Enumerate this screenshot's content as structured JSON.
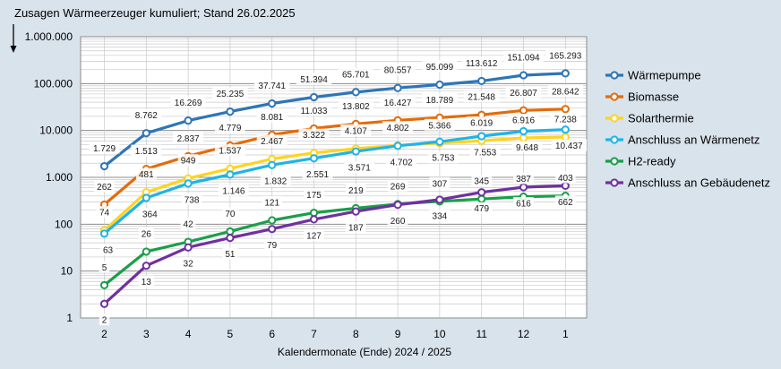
{
  "chart_data": {
    "type": "line",
    "title": "Zusagen Wärmeerzeuger kumuliert; Stand  26.02.2025",
    "xlabel": "Kalendermonate (Ende) 2024 / 2025",
    "ylabel": "",
    "yscale": "log",
    "ylim": [
      1,
      1000000
    ],
    "categories": [
      "2",
      "3",
      "4",
      "5",
      "6",
      "7",
      "8",
      "9",
      "10",
      "11",
      "12",
      "1"
    ],
    "y_tick_labels": [
      "1",
      "10",
      "100",
      "1.000",
      "10.000",
      "100.000",
      "1.000.000"
    ],
    "legend_position": "right",
    "series": [
      {
        "name": "Wärmepumpe",
        "color": "#2e75b6",
        "values": [
          1729,
          8762,
          16269,
          25235,
          37741,
          51394,
          65701,
          80557,
          95099,
          113612,
          151094,
          165293
        ],
        "labels": [
          "1.729",
          "8.762",
          "16.269",
          "25.235",
          "37.741",
          "51.394",
          "65.701",
          "80.557",
          "95.099",
          "113.612",
          "151.094",
          "165.293"
        ]
      },
      {
        "name": "Biomasse",
        "color": "#e36c0a",
        "values": [
          262,
          1513,
          2837,
          4779,
          8081,
          11033,
          13802,
          16427,
          18789,
          21548,
          26807,
          28642
        ],
        "labels": [
          "262",
          "1.513",
          "2.837",
          "4.779",
          "8.081",
          "11.033",
          "13.802",
          "16.427",
          "18.789",
          "21.548",
          "26.807",
          "28.642"
        ]
      },
      {
        "name": "Solarthermie",
        "color": "#ffd320",
        "values": [
          74,
          481,
          949,
          1537,
          2467,
          3322,
          4107,
          4802,
          5366,
          6019,
          6916,
          7238
        ],
        "labels": [
          "74",
          "481",
          "949",
          "1.537",
          "2.467",
          "3.322",
          "4.107",
          "4.802",
          "5.366",
          "6.019",
          "6.916",
          "7.238"
        ]
      },
      {
        "name": "Anschluss an Wärmenetz",
        "color": "#1fb4e6",
        "values": [
          63,
          364,
          738,
          1146,
          1832,
          2551,
          3571,
          4702,
          5753,
          7553,
          9648,
          10437
        ],
        "labels": [
          "63",
          "364",
          "738",
          "1.146",
          "1.832",
          "2.551",
          "3.571",
          "4.702",
          "5.753",
          "7.553",
          "9.648",
          "10.437"
        ]
      },
      {
        "name": "H2-ready",
        "color": "#1a9e4a",
        "values": [
          5,
          26,
          42,
          70,
          121,
          175,
          219,
          269,
          307,
          345,
          387,
          403
        ],
        "labels": [
          "5",
          "26",
          "42",
          "70",
          "121",
          "175",
          "219",
          "269",
          "307",
          "345",
          "387",
          "403"
        ]
      },
      {
        "name": "Anschluss an Gebäudenetz",
        "color": "#7030a0",
        "values": [
          2,
          13,
          32,
          51,
          79,
          127,
          187,
          260,
          334,
          479,
          616,
          662
        ],
        "labels": [
          "2",
          "13",
          "32",
          "51",
          "79",
          "127",
          "187",
          "260",
          "334",
          "479",
          "616",
          "662"
        ]
      }
    ]
  }
}
